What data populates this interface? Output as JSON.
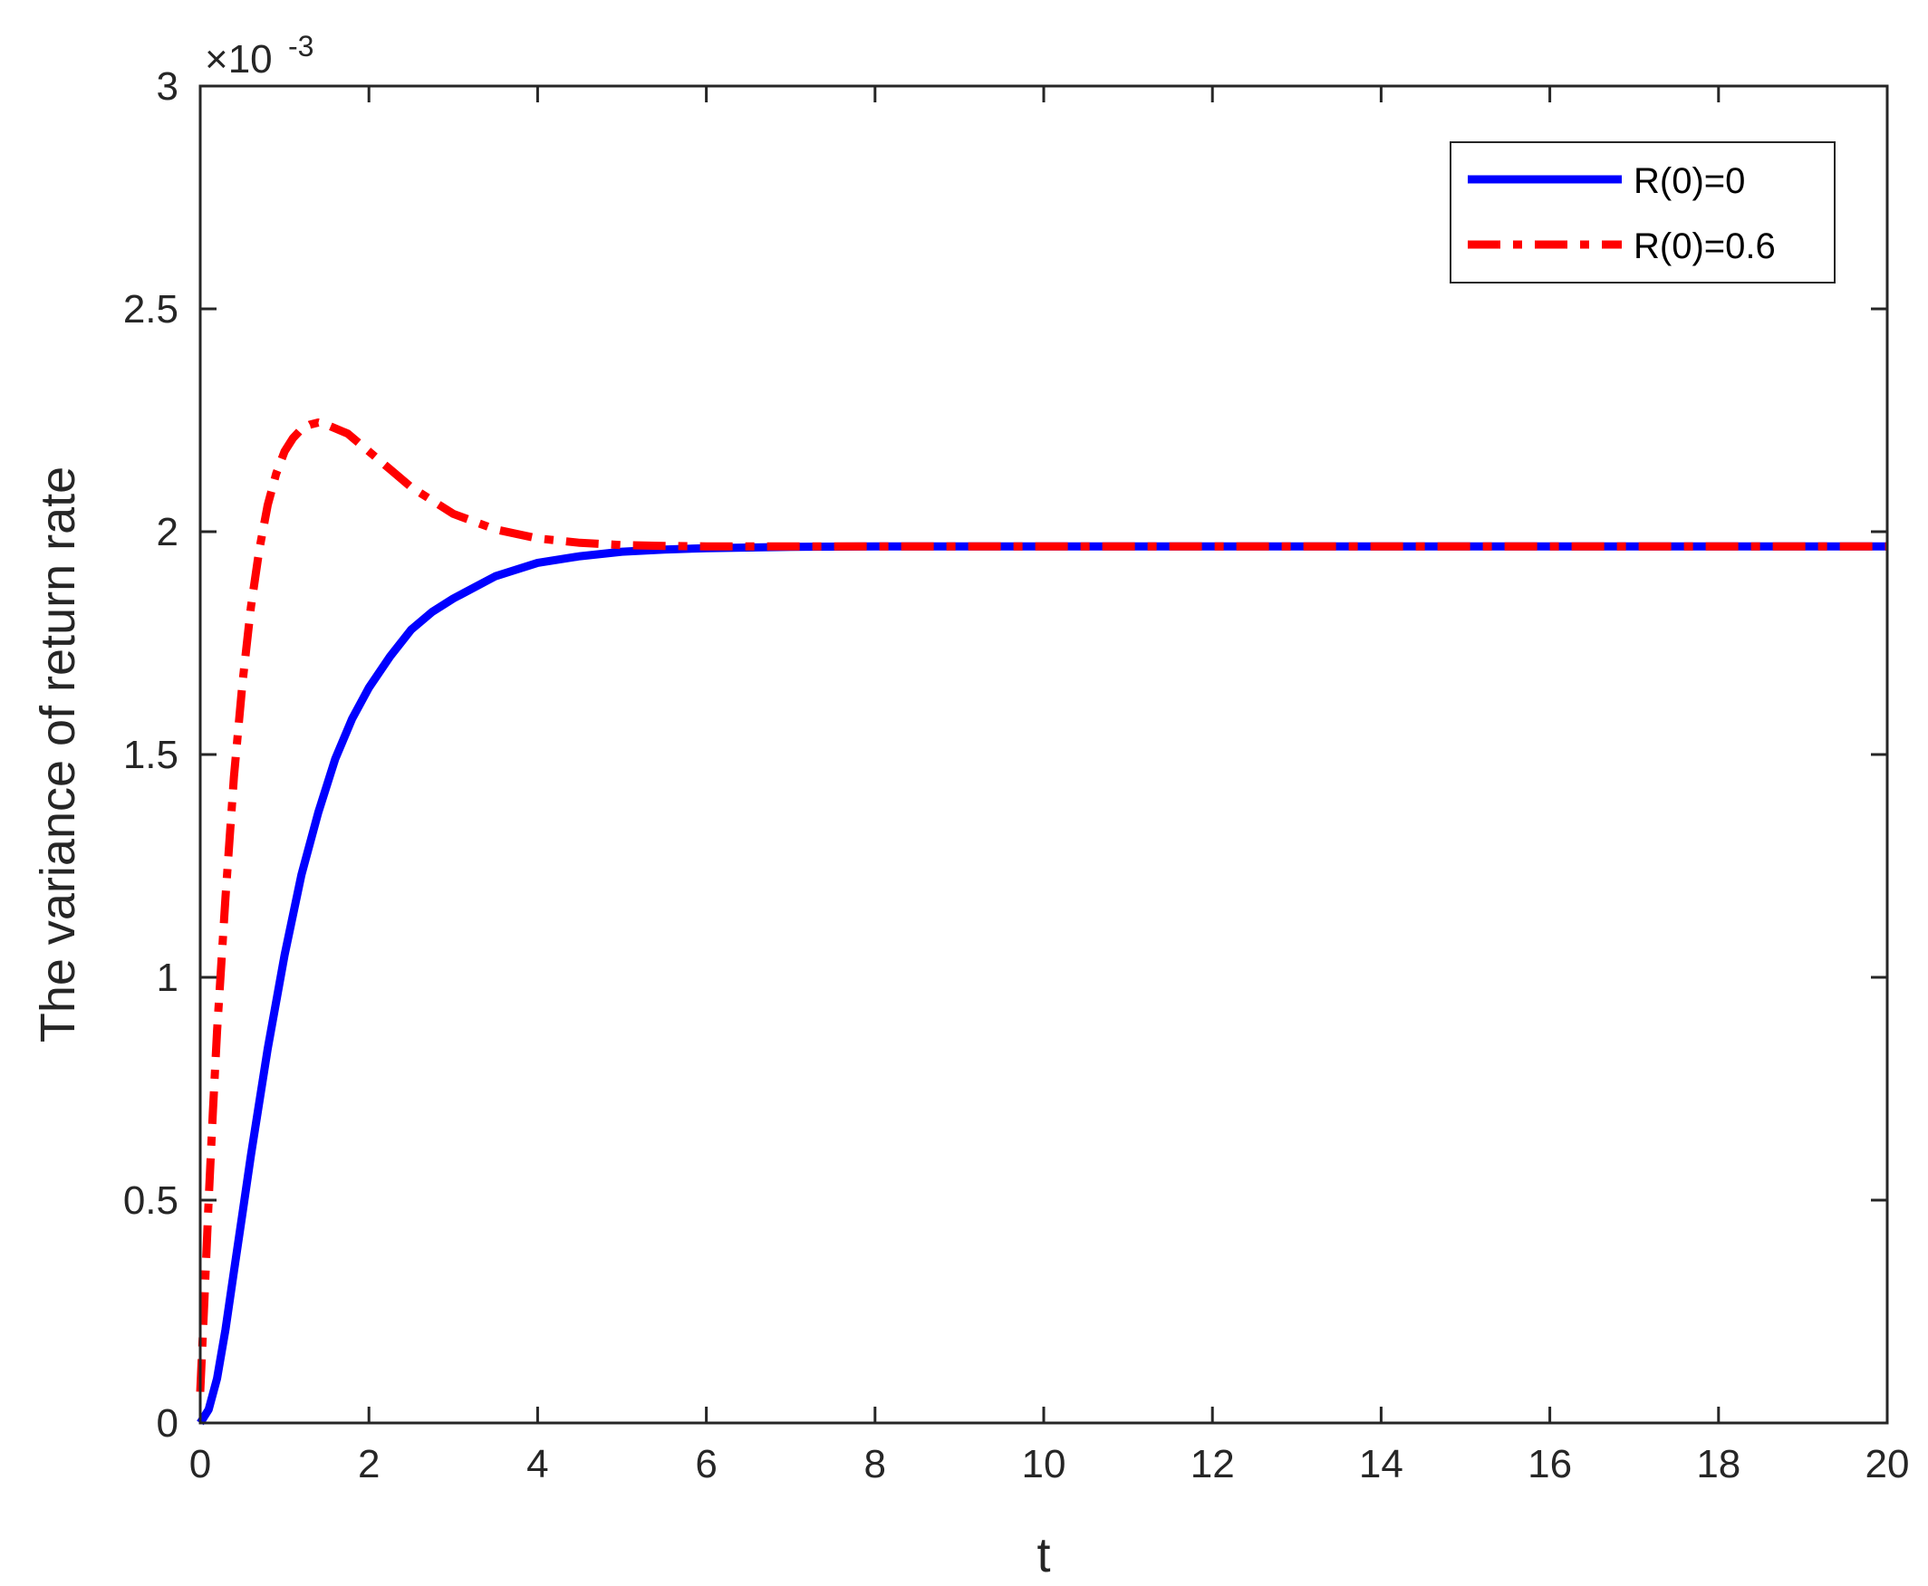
{
  "chart_data": {
    "type": "line",
    "title": "",
    "xlabel": "t",
    "ylabel": "The variance of return rate",
    "y_exponent_label": {
      "base": "×10",
      "exponent": "-3"
    },
    "xlim": [
      0,
      20
    ],
    "ylim": [
      0,
      3
    ],
    "x_ticks": [
      0,
      2,
      4,
      6,
      8,
      10,
      12,
      14,
      16,
      18,
      20
    ],
    "y_ticks": [
      0,
      0.5,
      1,
      1.5,
      2,
      2.5,
      3
    ],
    "x_tick_labels": [
      "0",
      "2",
      "4",
      "6",
      "8",
      "10",
      "12",
      "14",
      "16",
      "18",
      "20"
    ],
    "y_tick_labels": [
      "0",
      "0.5",
      "1",
      "1.5",
      "2",
      "2.5",
      "3"
    ],
    "grid": false,
    "legend_position": "top-right",
    "series": [
      {
        "name": "R(0)=0",
        "color": "#0000ff",
        "style": "solid",
        "x": [
          0,
          0.1,
          0.2,
          0.3,
          0.4,
          0.5,
          0.6,
          0.8,
          1.0,
          1.2,
          1.4,
          1.6,
          1.8,
          2.0,
          2.25,
          2.5,
          2.75,
          3.0,
          3.5,
          4.0,
          4.5,
          5.0,
          5.5,
          6.0,
          7.0,
          8.0,
          10.0,
          12.0,
          14.0,
          16.0,
          18.0,
          20.0
        ],
        "values": [
          0.0,
          0.03,
          0.1,
          0.21,
          0.34,
          0.47,
          0.6,
          0.84,
          1.05,
          1.23,
          1.37,
          1.49,
          1.58,
          1.65,
          1.72,
          1.78,
          1.82,
          1.85,
          1.9,
          1.93,
          1.945,
          1.955,
          1.96,
          1.963,
          1.966,
          1.967,
          1.967,
          1.967,
          1.967,
          1.967,
          1.967,
          1.967
        ]
      },
      {
        "name": "R(0)=0.6",
        "color": "#ff0000",
        "style": "dashdot",
        "x": [
          0,
          0.05,
          0.1,
          0.15,
          0.2,
          0.3,
          0.4,
          0.5,
          0.6,
          0.7,
          0.8,
          0.9,
          1.0,
          1.1,
          1.2,
          1.3,
          1.4,
          1.5,
          1.75,
          2.0,
          2.25,
          2.5,
          3.0,
          3.5,
          4.0,
          4.5,
          5.0,
          5.5,
          6.0,
          7.0,
          8.0,
          10.0,
          12.0,
          14.0,
          16.0,
          18.0,
          20.0
        ],
        "values": [
          0.07,
          0.28,
          0.5,
          0.7,
          0.88,
          1.18,
          1.45,
          1.66,
          1.83,
          1.96,
          2.06,
          2.13,
          2.18,
          2.21,
          2.23,
          2.24,
          2.245,
          2.24,
          2.22,
          2.18,
          2.14,
          2.1,
          2.04,
          2.005,
          1.985,
          1.975,
          1.97,
          1.968,
          1.967,
          1.967,
          1.967,
          1.967,
          1.967,
          1.967,
          1.967,
          1.967,
          1.967
        ]
      }
    ]
  }
}
